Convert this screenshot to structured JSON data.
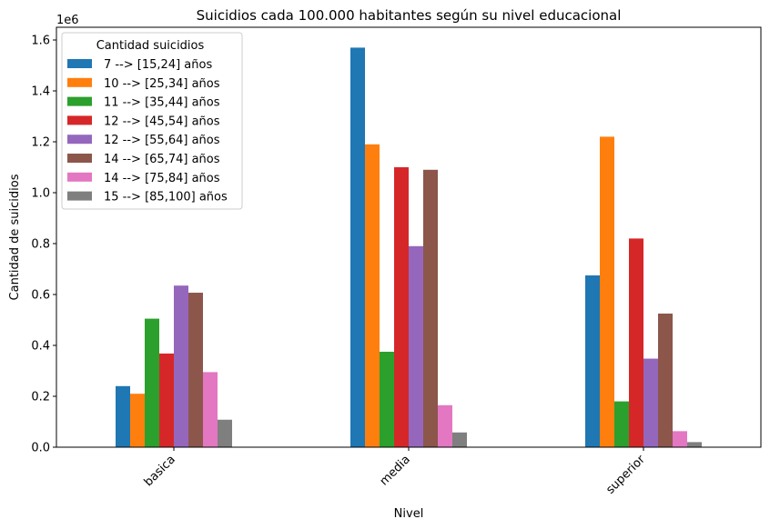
{
  "chart_data": {
    "type": "bar",
    "title": "Suicidios cada 100.000 habitantes según su nivel educacional",
    "xlabel": "Nivel",
    "ylabel": "Cantidad de suicidios",
    "offset_label": "1e6",
    "categories": [
      "basica",
      "media",
      "superior"
    ],
    "ylim": [
      0,
      1.65
    ],
    "y_ticks": [
      "0.0",
      "0.2",
      "0.4",
      "0.6",
      "0.8",
      "1.0",
      "1.2",
      "1.4",
      "1.6"
    ],
    "grid": false,
    "legend": {
      "title": "Cantidad suicidios",
      "placement": "top-left"
    },
    "series": [
      {
        "name": "7 --> [15,24] años",
        "color": "#1f77b4",
        "values": [
          0.24,
          1.57,
          0.675
        ]
      },
      {
        "name": "10 --> [25,34] años",
        "color": "#ff7f0e",
        "values": [
          0.21,
          1.19,
          1.22
        ]
      },
      {
        "name": "11 --> [35,44] años",
        "color": "#2ca02c",
        "values": [
          0.505,
          0.375,
          0.18
        ]
      },
      {
        "name": "12 --> [45,54] años",
        "color": "#d62728",
        "values": [
          0.368,
          1.1,
          0.82
        ]
      },
      {
        "name": "12 --> [55,64] años",
        "color": "#9467bd",
        "values": [
          0.635,
          0.79,
          0.348
        ]
      },
      {
        "name": "14 --> [65,74] años",
        "color": "#8c564b",
        "values": [
          0.607,
          1.09,
          0.525
        ]
      },
      {
        "name": "14 --> [75,84] años",
        "color": "#e377c2",
        "values": [
          0.295,
          0.165,
          0.063
        ]
      },
      {
        "name": "15 --> [85,100] años",
        "color": "#7f7f7f",
        "values": [
          0.108,
          0.058,
          0.02
        ]
      }
    ]
  }
}
